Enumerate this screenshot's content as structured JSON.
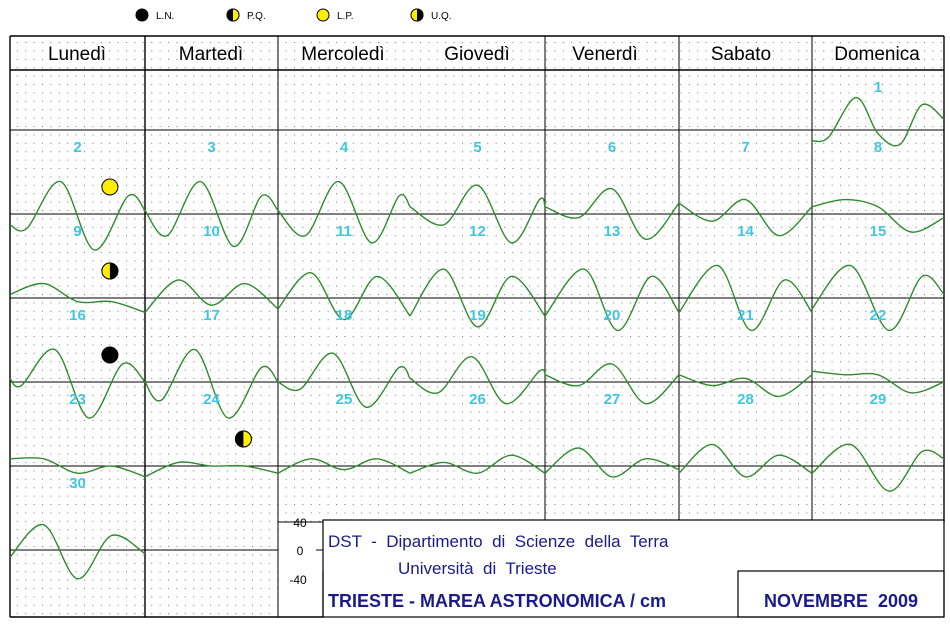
{
  "legend": [
    {
      "kind": "new",
      "label": "L.N."
    },
    {
      "kind": "first",
      "label": "P.Q."
    },
    {
      "kind": "full",
      "label": "L.P."
    },
    {
      "kind": "last",
      "label": "U.Q."
    }
  ],
  "weekdays": [
    "Lunedì",
    "Martedì",
    "Mercoledì",
    "Giovedì",
    "Venerdì",
    "Sabato",
    "Domenica"
  ],
  "scale": {
    "top": "40",
    "mid": "0",
    "bottom": "-40"
  },
  "info": {
    "org": "DST  -  Dipartimento  di  Scienze  della  Terra",
    "univ": "Università  di  Trieste",
    "title": "TRIESTE - MAREA ASTRONOMICA / cm",
    "month": "NOVEMBRE  2009"
  },
  "colors": {
    "curve": "#2e8b2e",
    "daynum": "#3fc6e3",
    "full": "#ffee00",
    "new": "#000000",
    "text": "#1a1a8c"
  },
  "chart_data": {
    "type": "line",
    "title": "TRIESTE - MAREA ASTRONOMICA / cm",
    "ylabel": "cm",
    "ylim": [
      -60,
      60
    ],
    "yticks": [
      40,
      0,
      -40
    ],
    "x_unit": "hour of day",
    "x_range": [
      0,
      24
    ],
    "month": "NOVEMBRE 2009",
    "moon_phases": [
      {
        "day": 2,
        "phase": "L.P."
      },
      {
        "day": 9,
        "phase": "U.Q."
      },
      {
        "day": 16,
        "phase": "L.N."
      },
      {
        "day": 24,
        "phase": "P.Q."
      }
    ],
    "days": [
      {
        "day": 1,
        "x": [
          0,
          3,
          8,
          12,
          16,
          20,
          24
        ],
        "y": [
          -15,
          -10,
          45,
          -5,
          -20,
          35,
          15
        ]
      },
      {
        "day": 2,
        "x": [
          0,
          3,
          9,
          15,
          21,
          24
        ],
        "y": [
          -15,
          -20,
          45,
          -50,
          25,
          5
        ]
      },
      {
        "day": 3,
        "x": [
          0,
          4,
          10,
          16,
          21,
          24
        ],
        "y": [
          5,
          -30,
          45,
          -45,
          25,
          5
        ]
      },
      {
        "day": 4,
        "x": [
          0,
          5,
          11,
          17,
          22,
          24
        ],
        "y": [
          5,
          -30,
          45,
          -40,
          25,
          10
        ]
      },
      {
        "day": 5,
        "x": [
          0,
          6,
          12,
          18,
          23,
          24
        ],
        "y": [
          10,
          -15,
          40,
          -40,
          20,
          10
        ]
      },
      {
        "day": 6,
        "x": [
          0,
          6,
          12,
          18,
          24
        ],
        "y": [
          10,
          -5,
          35,
          -35,
          15
        ]
      },
      {
        "day": 7,
        "x": [
          0,
          6,
          12,
          18,
          24
        ],
        "y": [
          15,
          -10,
          20,
          -30,
          10
        ]
      },
      {
        "day": 8,
        "x": [
          0,
          6,
          12,
          18,
          24
        ],
        "y": [
          10,
          20,
          10,
          -25,
          -5
        ]
      },
      {
        "day": 9,
        "x": [
          0,
          6,
          12,
          18,
          24
        ],
        "y": [
          5,
          20,
          -5,
          -5,
          -20
        ]
      },
      {
        "day": 10,
        "x": [
          0,
          6,
          12,
          18,
          24
        ],
        "y": [
          -20,
          25,
          -10,
          20,
          -15
        ]
      },
      {
        "day": 11,
        "x": [
          0,
          6,
          12,
          18,
          24
        ],
        "y": [
          -15,
          35,
          -30,
          30,
          -25
        ]
      },
      {
        "day": 12,
        "x": [
          0,
          6,
          12,
          18,
          24
        ],
        "y": [
          -25,
          40,
          -40,
          30,
          -25
        ]
      },
      {
        "day": 13,
        "x": [
          0,
          7,
          13,
          19,
          24
        ],
        "y": [
          -25,
          40,
          -45,
          30,
          -20
        ]
      },
      {
        "day": 14,
        "x": [
          0,
          7,
          13,
          19,
          24
        ],
        "y": [
          -20,
          45,
          -45,
          25,
          -20
        ]
      },
      {
        "day": 15,
        "x": [
          0,
          7,
          14,
          20,
          24
        ],
        "y": [
          -15,
          45,
          -45,
          30,
          5
        ]
      },
      {
        "day": 16,
        "x": [
          0,
          2,
          8,
          14,
          20,
          24
        ],
        "y": [
          5,
          -5,
          45,
          -50,
          25,
          0
        ]
      },
      {
        "day": 17,
        "x": [
          0,
          3,
          9,
          15,
          21,
          24
        ],
        "y": [
          0,
          -25,
          45,
          -50,
          20,
          0
        ]
      },
      {
        "day": 18,
        "x": [
          0,
          4,
          10,
          16,
          22,
          24
        ],
        "y": [
          0,
          -10,
          40,
          -35,
          20,
          5
        ]
      },
      {
        "day": 19,
        "x": [
          0,
          5,
          11,
          17,
          23,
          24
        ],
        "y": [
          5,
          -15,
          35,
          -30,
          15,
          10
        ]
      },
      {
        "day": 20,
        "x": [
          0,
          6,
          12,
          18,
          24
        ],
        "y": [
          10,
          -5,
          25,
          -30,
          10
        ]
      },
      {
        "day": 21,
        "x": [
          0,
          6,
          12,
          18,
          24
        ],
        "y": [
          10,
          -5,
          5,
          -20,
          10
        ]
      },
      {
        "day": 22,
        "x": [
          0,
          6,
          12,
          18,
          24
        ],
        "y": [
          15,
          10,
          10,
          -15,
          0
        ]
      },
      {
        "day": 23,
        "x": [
          0,
          6,
          12,
          18,
          24
        ],
        "y": [
          10,
          10,
          -10,
          0,
          -15
        ]
      },
      {
        "day": 24,
        "x": [
          0,
          6,
          12,
          18,
          24
        ],
        "y": [
          -15,
          5,
          0,
          0,
          -10
        ]
      },
      {
        "day": 25,
        "x": [
          0,
          6,
          12,
          18,
          24
        ],
        "y": [
          -10,
          10,
          -5,
          10,
          -10
        ]
      },
      {
        "day": 26,
        "x": [
          0,
          6,
          12,
          18,
          24
        ],
        "y": [
          -10,
          5,
          -10,
          15,
          -10
        ]
      },
      {
        "day": 27,
        "x": [
          0,
          6,
          12,
          18,
          24
        ],
        "y": [
          -10,
          25,
          -15,
          10,
          -5
        ]
      },
      {
        "day": 28,
        "x": [
          0,
          6,
          12,
          18,
          24
        ],
        "y": [
          -10,
          30,
          -15,
          15,
          -10
        ]
      },
      {
        "day": 29,
        "x": [
          0,
          7,
          14,
          20,
          24
        ],
        "y": [
          -10,
          30,
          -35,
          20,
          10
        ]
      },
      {
        "day": 30,
        "x": [
          0,
          6,
          12,
          18,
          24
        ],
        "y": [
          -10,
          35,
          -40,
          20,
          -5
        ]
      }
    ]
  }
}
